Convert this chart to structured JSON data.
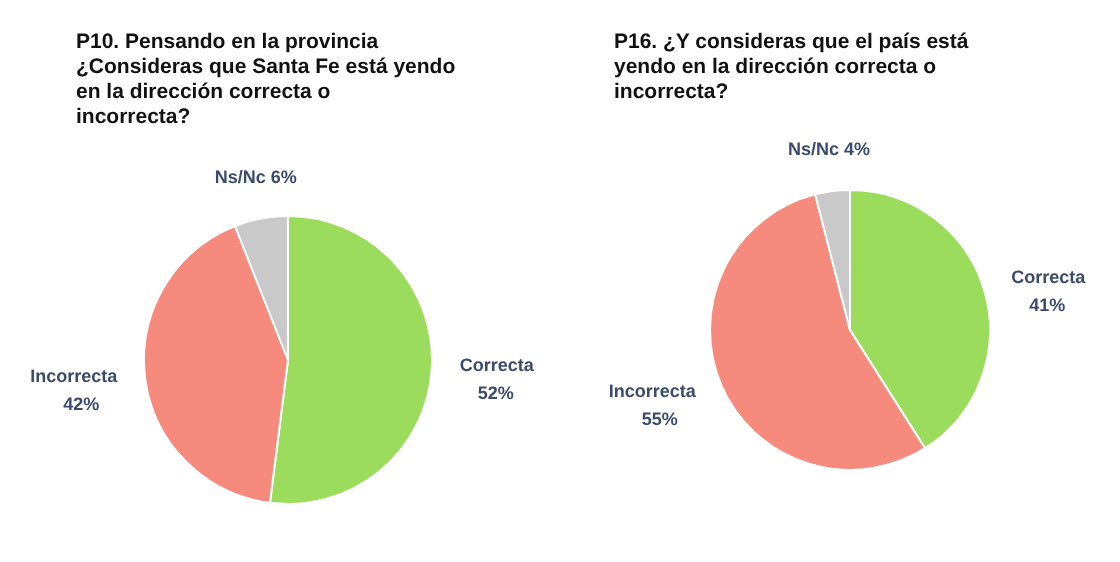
{
  "chart_data": [
    {
      "type": "pie",
      "title": "P10. Pensando en la provincia ¿Consideras que Santa Fe está yendo en la dirección correcta o incorrecta?",
      "categories": [
        "Correcta",
        "Incorrecta",
        "Ns/Nc"
      ],
      "values": [
        52,
        42,
        6
      ],
      "value_labels": [
        "52%",
        "42%",
        "6%"
      ],
      "colors": [
        "#9cdc5c",
        "#f68b7d",
        "#c9c9c9"
      ]
    },
    {
      "type": "pie",
      "title": "P16. ¿Y consideras que el país está yendo en la dirección correcta o incorrecta?",
      "categories": [
        "Correcta",
        "Incorrecta",
        "Ns/Nc"
      ],
      "values": [
        41,
        55,
        4
      ],
      "value_labels": [
        "41%",
        "55%",
        "4%"
      ],
      "colors": [
        "#9cdc5c",
        "#f68b7d",
        "#c9c9c9"
      ]
    }
  ]
}
